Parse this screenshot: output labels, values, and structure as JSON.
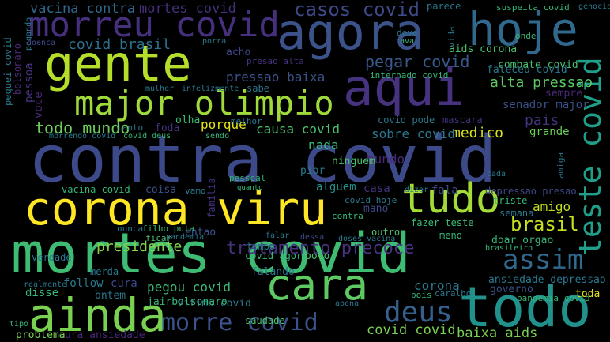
{
  "colors": {
    "background": "#000000"
  },
  "words": [
    {
      "text": "contra covid",
      "color": "#3d4a8a"
    },
    {
      "text": "mortes covid",
      "color": "#3fbc73"
    },
    {
      "text": "corona viru",
      "color": "#fde725"
    },
    {
      "text": "agora",
      "color": "#3b528b"
    },
    {
      "text": "hoje",
      "color": "#31688e"
    },
    {
      "text": "gente",
      "color": "#b5de2b"
    },
    {
      "text": "aqui",
      "color": "#46327e"
    },
    {
      "text": "major olimpio",
      "color": "#9fda3a"
    },
    {
      "text": "morreu covid",
      "color": "#46307e"
    },
    {
      "text": "cara",
      "color": "#5ec962"
    },
    {
      "text": "ainda",
      "color": "#7ad151"
    },
    {
      "text": "todo",
      "color": "#21918c"
    },
    {
      "text": "tudo",
      "color": "#a5db36"
    },
    {
      "text": "teste covid",
      "color": "#1f9e89"
    },
    {
      "text": "morre covid",
      "color": "#3b528b"
    },
    {
      "text": "assim",
      "color": "#31688e"
    },
    {
      "text": "deus",
      "color": "#35608d"
    },
    {
      "text": "casos covid",
      "color": "#3e4989"
    },
    {
      "text": "pegar covid",
      "color": "#38598c"
    },
    {
      "text": "tratamento precoce",
      "color": "#46327e"
    },
    {
      "text": "todo mundo",
      "color": "#6ccd5a"
    },
    {
      "text": "covid brasil",
      "color": "#2c728e"
    },
    {
      "text": "presidente",
      "color": "#84d44b"
    },
    {
      "text": "brasil",
      "color": "#c8e020"
    },
    {
      "text": "vacina contra",
      "color": "#31688e"
    },
    {
      "text": "mortes covid",
      "color": "#46307e"
    },
    {
      "text": "pressao baixa",
      "color": "#3b528b"
    },
    {
      "text": "alta pressao",
      "color": "#5ec962"
    },
    {
      "text": "medico",
      "color": "#d8e219"
    },
    {
      "text": "porque",
      "color": "#e5e419"
    },
    {
      "text": "causa covid",
      "color": "#4ac16d"
    },
    {
      "text": "sobre covid",
      "color": "#2a788e"
    },
    {
      "text": "nada",
      "color": "#35b779"
    },
    {
      "text": "mundo",
      "color": "#482878"
    },
    {
      "text": "casa",
      "color": "#46327e"
    },
    {
      "text": "fala",
      "color": "#3e4989"
    },
    {
      "text": "amigo",
      "color": "#c2df23"
    },
    {
      "text": "covid covid",
      "color": "#7ad151"
    },
    {
      "text": "baixa aids",
      "color": "#7ad151"
    },
    {
      "text": "corona",
      "color": "#2a788e"
    },
    {
      "text": "pegou covid",
      "color": "#3aba76"
    },
    {
      "text": "vitima covid",
      "color": "#2a788e"
    },
    {
      "text": "cura ansiedade",
      "color": "#482878"
    },
    {
      "text": "falando",
      "color": "#2a788e"
    },
    {
      "text": "saudade",
      "color": "#4ac16d"
    },
    {
      "text": "aids corona",
      "color": "#4ac16d"
    },
    {
      "text": "combate covid",
      "color": "#4ac16d"
    },
    {
      "text": "faleceu covid",
      "color": "#2a788e"
    },
    {
      "text": "senador major",
      "color": "#3b528b"
    },
    {
      "text": "pais",
      "color": "#46327e"
    },
    {
      "text": "grande",
      "color": "#6ccd5a"
    },
    {
      "text": "sempre",
      "color": "#482878"
    },
    {
      "text": "depressao presao",
      "color": "#3e4989"
    },
    {
      "text": "triste",
      "color": "#35b779"
    },
    {
      "text": "semana",
      "color": "#2a788e"
    },
    {
      "text": "doar orgao",
      "color": "#35b779"
    },
    {
      "text": "ansiedade depressao",
      "color": "#2a788e"
    },
    {
      "text": "governo",
      "color": "#3b528b"
    },
    {
      "text": "pandemia covid",
      "color": "#35b779"
    },
    {
      "text": "toda",
      "color": "#e5e419"
    },
    {
      "text": "fazer teste",
      "color": "#3aba76"
    },
    {
      "text": "meno",
      "color": "#35b779"
    },
    {
      "text": "alguem",
      "color": "#21918c"
    },
    {
      "text": "ninguem",
      "color": "#4ac16d"
    },
    {
      "text": "pior",
      "color": "#2a788e"
    },
    {
      "text": "pessoal",
      "color": "#35b779"
    },
    {
      "text": "tempo",
      "color": "#2a788e"
    },
    {
      "text": "covid agora",
      "color": "#35b779"
    },
    {
      "text": "povo",
      "color": "#4ac16d"
    },
    {
      "text": "ontem",
      "color": "#2a788e"
    },
    {
      "text": "merda",
      "color": "#2a788e"
    },
    {
      "text": "jairbolsonaro",
      "color": "#35b779"
    },
    {
      "text": "follow",
      "color": "#2a788e"
    },
    {
      "text": "cura",
      "color": "#3e4989"
    },
    {
      "text": "verdade",
      "color": "#2a788e"
    },
    {
      "text": "disse",
      "color": "#35b779"
    },
    {
      "text": "realmente",
      "color": "#2a788e"
    },
    {
      "text": "problema",
      "color": "#7ad151"
    },
    {
      "text": "vacina covid",
      "color": "#35b779"
    },
    {
      "text": "coisa",
      "color": "#3b528b"
    },
    {
      "text": "vamo",
      "color": "#2a788e"
    },
    {
      "text": "familia",
      "color": "#46327e"
    },
    {
      "text": "entao",
      "color": "#3b528b"
    },
    {
      "text": "filho puta",
      "color": "#3aba76"
    },
    {
      "text": "ficar",
      "color": "#4ac16d"
    },
    {
      "text": "pandemia",
      "color": "#2a788e"
    },
    {
      "text": "nunca",
      "color": "#2a788e"
    },
    {
      "text": "olha",
      "color": "#3aba76"
    },
    {
      "text": "foda",
      "color": "#46327e"
    },
    {
      "text": "tanto",
      "color": "#2a788e"
    },
    {
      "text": "covid deus",
      "color": "#35b779"
    },
    {
      "text": "morrendo covid",
      "color": "#2a788e"
    },
    {
      "text": "melhor",
      "color": "#2a788e"
    },
    {
      "text": "sendo",
      "color": "#35b779"
    },
    {
      "text": "covid pode",
      "color": "#2a788e"
    },
    {
      "text": "mascara",
      "color": "#46327e"
    },
    {
      "text": "sabe",
      "color": "#2a788e"
    },
    {
      "text": "voce",
      "color": "#482878"
    },
    {
      "text": "infelizmente",
      "color": "#2a788e"
    },
    {
      "text": "mulher",
      "color": "#2a788e"
    },
    {
      "text": "acho",
      "color": "#3e4989"
    },
    {
      "text": "presao alta",
      "color": "#46327e"
    },
    {
      "text": "internado covid",
      "color": "#35b779"
    },
    {
      "text": "pessoa",
      "color": "#46327e"
    },
    {
      "text": "pegando",
      "color": "#2a788e"
    },
    {
      "text": "bolsonaro",
      "color": "#482878"
    },
    {
      "text": "pequei covid",
      "color": "#2a788e"
    },
    {
      "text": "onde",
      "color": "#35b779"
    },
    {
      "text": "vida",
      "color": "#2a788e"
    },
    {
      "text": "deve",
      "color": "#2a788e"
    },
    {
      "text": "tava",
      "color": "#35b779"
    },
    {
      "text": "parece",
      "color": "#2a788e"
    },
    {
      "text": "suspeita covid",
      "color": "#35b779"
    },
    {
      "text": "genocida",
      "color": "#2a788e"
    },
    {
      "text": "porra",
      "color": "#2a788e"
    },
    {
      "text": "doenca",
      "color": "#3e4989"
    },
    {
      "text": "contra",
      "color": "#35b779"
    },
    {
      "text": "mano",
      "color": "#3e4989"
    },
    {
      "text": "covid hoje",
      "color": "#2a788e"
    },
    {
      "text": "outro",
      "color": "#4ac16d"
    },
    {
      "text": "doses vacina",
      "color": "#2a788e"
    },
    {
      "text": "brasileiro",
      "color": "#35b779"
    },
    {
      "text": "caralho",
      "color": "#2a788e"
    },
    {
      "text": "pois",
      "color": "#35b779"
    },
    {
      "text": "apena",
      "color": "#2a788e"
    },
    {
      "text": "ontem",
      "color": "#2a788e"
    },
    {
      "text": "tipo",
      "color": "#35b779"
    },
    {
      "text": "dizer",
      "color": "#2a788e"
    },
    {
      "text": "cada",
      "color": "#2a788e"
    },
    {
      "text": "quanto",
      "color": "#35b779"
    },
    {
      "text": "amiga",
      "color": "#2a788e"
    },
    {
      "text": "falar",
      "color": "#2a788e"
    },
    {
      "text": "dessa",
      "color": "#3e4989"
    }
  ]
}
